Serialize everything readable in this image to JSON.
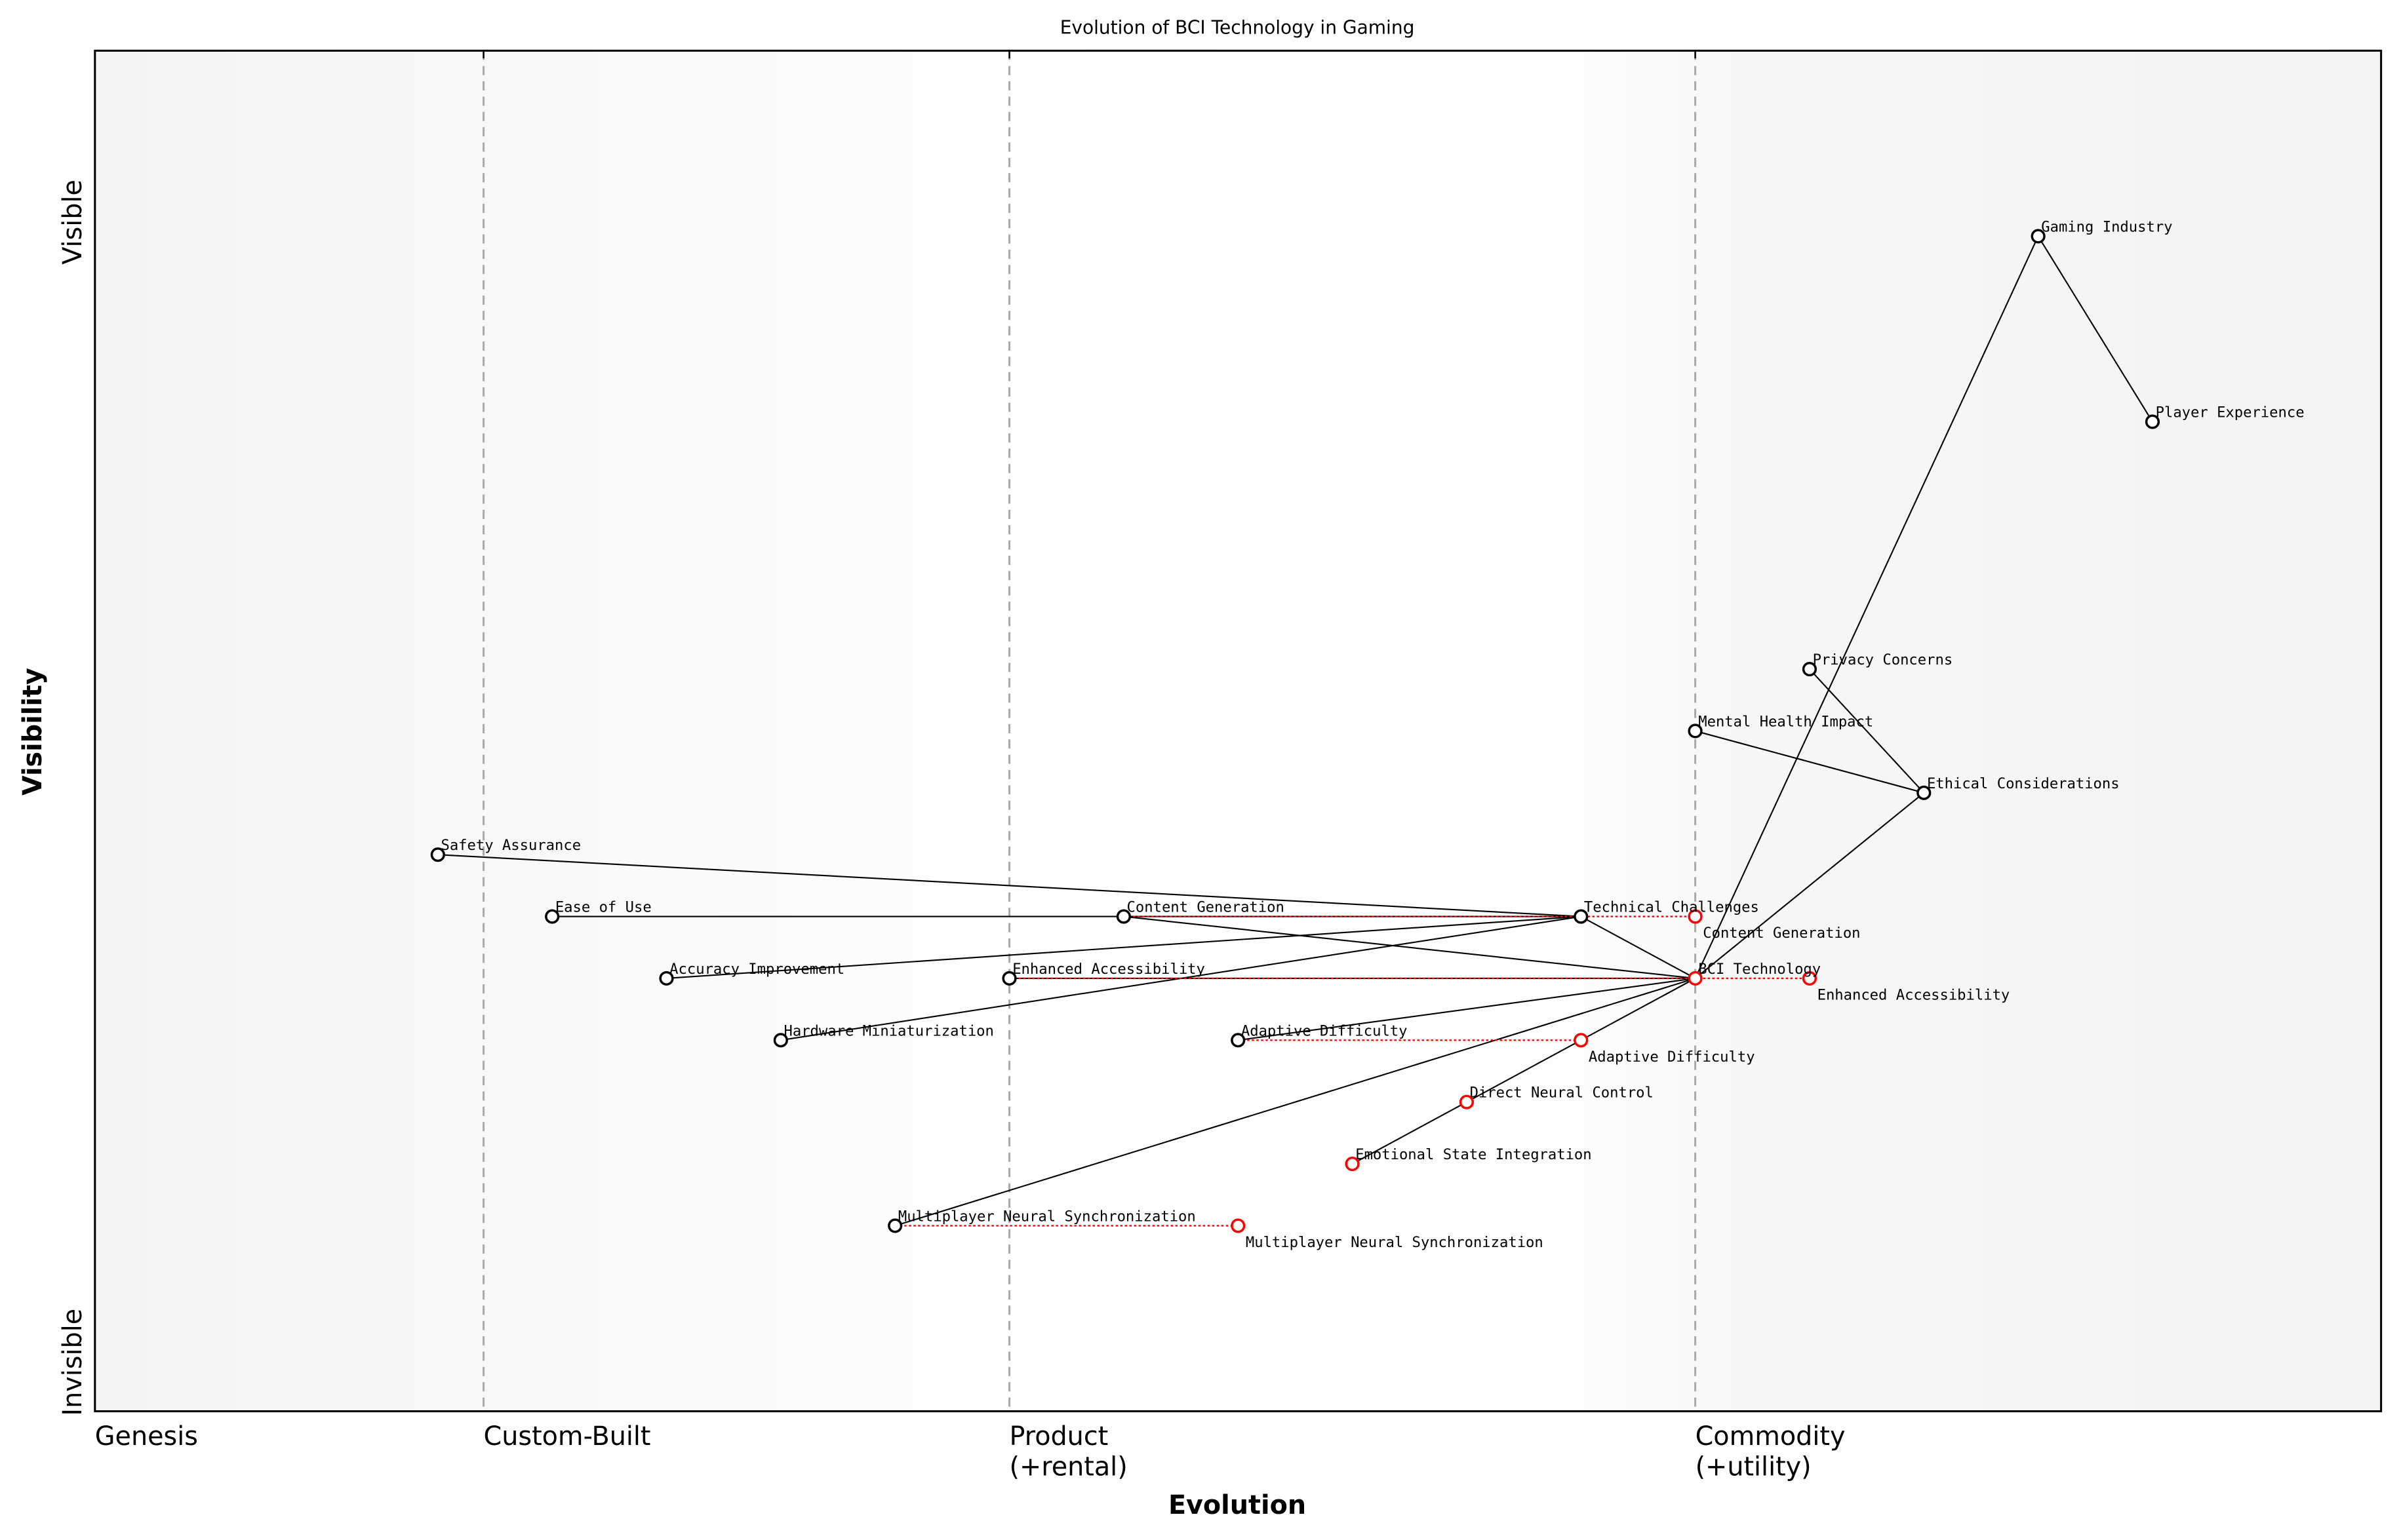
{
  "chart_data": {
    "type": "wardley-map",
    "title": "Evolution of BCI Technology in Gaming",
    "xlabel": "Evolution",
    "ylabel": "Visibility",
    "xlim": [
      0,
      1
    ],
    "ylim": [
      0,
      1.1
    ],
    "x_ticks": [
      {
        "value": 0,
        "label": "Genesis"
      },
      {
        "value": 0.17,
        "label": "Custom-Built"
      },
      {
        "value": 0.4,
        "label": "Product\n(+rental)"
      },
      {
        "value": 0.7,
        "label": "Commodity\n(+utility)"
      }
    ],
    "y_ticks": [
      {
        "value": 0,
        "label": "Invisible"
      },
      {
        "value": 0.95,
        "label": "Visible"
      }
    ],
    "stage_lines": [
      0.17,
      0.4,
      0.7
    ],
    "components": [
      {
        "name": "Gaming Industry",
        "x": 0.85,
        "y": 0.95
      },
      {
        "name": "Player Experience",
        "x": 0.9,
        "y": 0.8
      },
      {
        "name": "Privacy Concerns",
        "x": 0.75,
        "y": 0.6
      },
      {
        "name": "Mental Health Impact",
        "x": 0.7,
        "y": 0.55
      },
      {
        "name": "Ethical Considerations",
        "x": 0.8,
        "y": 0.5
      },
      {
        "name": "Safety Assurance",
        "x": 0.15,
        "y": 0.45
      },
      {
        "name": "Ease of Use",
        "x": 0.2,
        "y": 0.4
      },
      {
        "name": "Content Generation",
        "x": 0.45,
        "y": 0.4
      },
      {
        "name": "Technical Challenges",
        "x": 0.65,
        "y": 0.4
      },
      {
        "name": "Accuracy Improvement",
        "x": 0.25,
        "y": 0.35
      },
      {
        "name": "Enhanced Accessibility",
        "x": 0.4,
        "y": 0.35
      },
      {
        "name": "BCI Technology",
        "x": 0.7,
        "y": 0.35,
        "evolving": true
      },
      {
        "name": "Hardware Miniaturization",
        "x": 0.3,
        "y": 0.3
      },
      {
        "name": "Adaptive Difficulty",
        "x": 0.5,
        "y": 0.3
      },
      {
        "name": "Direct Neural Control",
        "x": 0.6,
        "y": 0.25,
        "evolving": true
      },
      {
        "name": "Emotional State Integration",
        "x": 0.55,
        "y": 0.2,
        "evolving": true
      },
      {
        "name": "Multiplayer Neural Synchronization",
        "x": 0.35,
        "y": 0.15
      }
    ],
    "evolved": [
      {
        "name": "Content Generation",
        "from": 0.45,
        "to": 0.7,
        "y": 0.4
      },
      {
        "name": "Enhanced Accessibility",
        "from": 0.4,
        "to": 0.75,
        "y": 0.35
      },
      {
        "name": "Adaptive Difficulty",
        "from": 0.5,
        "to": 0.65,
        "y": 0.3
      },
      {
        "name": "Multiplayer Neural Synchronization",
        "from": 0.35,
        "to": 0.5,
        "y": 0.15
      }
    ],
    "links": [
      [
        "Gaming Industry",
        "Player Experience"
      ],
      [
        "Gaming Industry",
        "BCI Technology"
      ],
      [
        "Privacy Concerns",
        "Ethical Considerations"
      ],
      [
        "Mental Health Impact",
        "Ethical Considerations"
      ],
      [
        "Ethical Considerations",
        "BCI Technology"
      ],
      [
        "Technical Challenges",
        "Safety Assurance"
      ],
      [
        "Technical Challenges",
        "Ease of Use"
      ],
      [
        "Technical Challenges",
        "Accuracy Improvement"
      ],
      [
        "Technical Challenges",
        "Hardware Miniaturization"
      ],
      [
        "Technical Challenges",
        "BCI Technology"
      ],
      [
        "Content Generation",
        "BCI Technology"
      ],
      [
        "Enhanced Accessibility",
        "BCI Technology"
      ],
      [
        "Adaptive Difficulty",
        "BCI Technology"
      ],
      [
        "Multiplayer Neural Synchronization",
        "BCI Technology"
      ],
      [
        "Direct Neural Control",
        "BCI Technology"
      ],
      [
        "Emotional State Integration",
        "Direct Neural Control"
      ]
    ],
    "colors": {
      "node": "#000000",
      "evolved": "#ff0000",
      "stage_line": "#aaaaaa",
      "link": "#000000"
    },
    "grid": false
  }
}
